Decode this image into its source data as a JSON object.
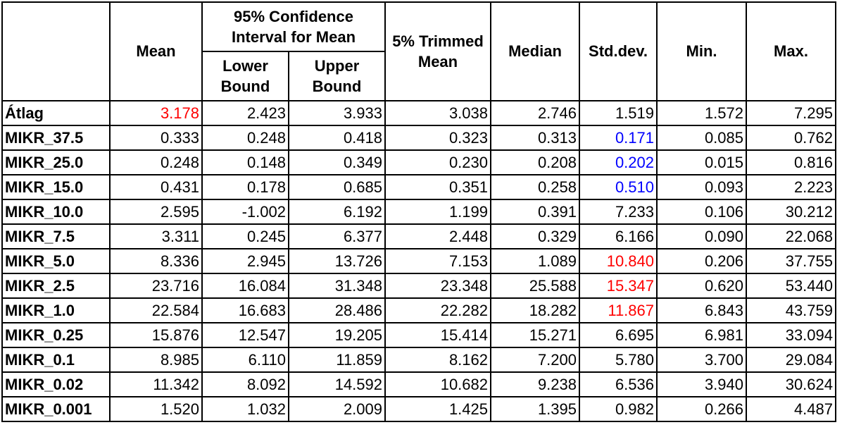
{
  "headers": {
    "mean": "Mean",
    "ci": "95% Confidence Interval for Mean",
    "lower": "Lower Bound",
    "upper": "Upper Bound",
    "trimmed": "5% Trimmed Mean",
    "median": "Median",
    "std": "Std.dev.",
    "min": "Min.",
    "max": "Max."
  },
  "rows": [
    {
      "label": "Átlag",
      "mean": "3.178",
      "lower": "2.423",
      "upper": "3.933",
      "trimmed": "3.038",
      "median": "2.746",
      "std": "1.519",
      "min": "1.572",
      "max": "7.295"
    },
    {
      "label": "MIKR_37.5",
      "mean": "0.333",
      "lower": "0.248",
      "upper": "0.418",
      "trimmed": "0.323",
      "median": "0.313",
      "std": "0.171",
      "min": "0.085",
      "max": "0.762"
    },
    {
      "label": "MIKR_25.0",
      "mean": "0.248",
      "lower": "0.148",
      "upper": "0.349",
      "trimmed": "0.230",
      "median": "0.208",
      "std": "0.202",
      "min": "0.015",
      "max": "0.816"
    },
    {
      "label": "MIKR_15.0",
      "mean": "0.431",
      "lower": "0.178",
      "upper": "0.685",
      "trimmed": "0.351",
      "median": "0.258",
      "std": "0.510",
      "min": "0.093",
      "max": "2.223"
    },
    {
      "label": "MIKR_10.0",
      "mean": "2.595",
      "lower": "-1.002",
      "upper": "6.192",
      "trimmed": "1.199",
      "median": "0.391",
      "std": "7.233",
      "min": "0.106",
      "max": "30.212"
    },
    {
      "label": "MIKR_7.5",
      "mean": "3.311",
      "lower": "0.245",
      "upper": "6.377",
      "trimmed": "2.448",
      "median": "0.329",
      "std": "6.166",
      "min": "0.090",
      "max": "22.068"
    },
    {
      "label": "MIKR_5.0",
      "mean": "8.336",
      "lower": "2.945",
      "upper": "13.726",
      "trimmed": "7.153",
      "median": "1.089",
      "std": "10.840",
      "min": "0.206",
      "max": "37.755"
    },
    {
      "label": "MIKR_2.5",
      "mean": "23.716",
      "lower": "16.084",
      "upper": "31.348",
      "trimmed": "23.348",
      "median": "25.588",
      "std": "15.347",
      "min": "0.620",
      "max": "53.440"
    },
    {
      "label": "MIKR_1.0",
      "mean": "22.584",
      "lower": "16.683",
      "upper": "28.486",
      "trimmed": "22.282",
      "median": "18.282",
      "std": "11.867",
      "min": "6.843",
      "max": "43.759"
    },
    {
      "label": "MIKR_0.25",
      "mean": "15.876",
      "lower": "12.547",
      "upper": "19.205",
      "trimmed": "15.414",
      "median": "15.271",
      "std": "6.695",
      "min": "6.981",
      "max": "33.094"
    },
    {
      "label": "MIKR_0.1",
      "mean": "8.985",
      "lower": "6.110",
      "upper": "11.859",
      "trimmed": "8.162",
      "median": "7.200",
      "std": "5.780",
      "min": "3.700",
      "max": "29.084"
    },
    {
      "label": "MIKR_0.02",
      "mean": "11.342",
      "lower": "8.092",
      "upper": "14.592",
      "trimmed": "10.682",
      "median": "9.238",
      "std": "6.536",
      "min": "3.940",
      "max": "30.624"
    },
    {
      "label": "MIKR_0.001",
      "mean": "1.520",
      "lower": "1.032",
      "upper": "2.009",
      "trimmed": "1.425",
      "median": "1.395",
      "std": "0.982",
      "min": "0.266",
      "max": "4.487"
    }
  ],
  "highlight_colors": {
    "red": "#ff0000",
    "blue": "#0000ff"
  },
  "highlighted_cells": [
    {
      "row": "Átlag",
      "column": "mean",
      "color": "red"
    },
    {
      "row": "MIKR_37.5",
      "column": "std",
      "color": "blue"
    },
    {
      "row": "MIKR_25.0",
      "column": "std",
      "color": "blue"
    },
    {
      "row": "MIKR_15.0",
      "column": "std",
      "color": "blue"
    },
    {
      "row": "MIKR_5.0",
      "column": "std",
      "color": "red"
    },
    {
      "row": "MIKR_2.5",
      "column": "std",
      "color": "red"
    },
    {
      "row": "MIKR_1.0",
      "column": "std",
      "color": "red"
    }
  ]
}
